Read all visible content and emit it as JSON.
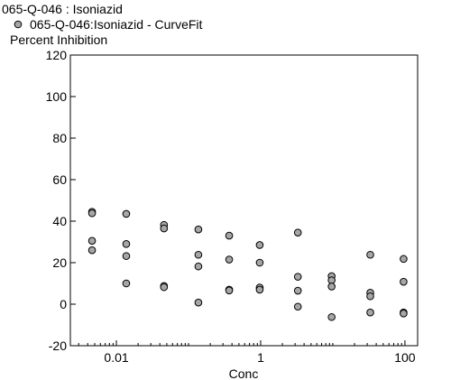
{
  "chart_data": {
    "type": "scatter",
    "title": "065-Q-046  : Isoniazid",
    "legend": {
      "placement": "top-left",
      "entries": [
        {
          "label": "065-Q-046:Isoniazid - CurveFit",
          "marker": "circle",
          "color": "#a6a6a6"
        }
      ]
    },
    "ylabel": "Percent Inhibition",
    "xlabel": "Conc",
    "x_scale": "log",
    "xlim": [
      0.0023,
      150
    ],
    "ylim": [
      -20,
      120
    ],
    "x_ticks": [
      {
        "value": 0.01,
        "label": "0.01"
      },
      {
        "value": 1,
        "label": "1"
      },
      {
        "value": 100,
        "label": "100"
      }
    ],
    "y_ticks": [
      {
        "value": -20,
        "label": "-20"
      },
      {
        "value": 0,
        "label": "0"
      },
      {
        "value": 20,
        "label": "20"
      },
      {
        "value": 40,
        "label": "40"
      },
      {
        "value": 60,
        "label": "60"
      },
      {
        "value": 80,
        "label": "80"
      },
      {
        "value": 100,
        "label": "100"
      },
      {
        "value": 120,
        "label": "120"
      }
    ],
    "grid": false,
    "marker_color": "#a6a6a6",
    "series": [
      {
        "points": [
          {
            "x": 0.0046,
            "y": 44.5
          },
          {
            "x": 0.0046,
            "y": 43.8
          },
          {
            "x": 0.0046,
            "y": 30.5
          },
          {
            "x": 0.0046,
            "y": 26.0
          },
          {
            "x": 0.0137,
            "y": 43.5
          },
          {
            "x": 0.0137,
            "y": 29.0
          },
          {
            "x": 0.0137,
            "y": 23.2
          },
          {
            "x": 0.0137,
            "y": 10.0
          },
          {
            "x": 0.0457,
            "y": 38.2
          },
          {
            "x": 0.0457,
            "y": 36.5
          },
          {
            "x": 0.0457,
            "y": 8.8
          },
          {
            "x": 0.0457,
            "y": 8.2
          },
          {
            "x": 0.137,
            "y": 36.0
          },
          {
            "x": 0.137,
            "y": 23.8
          },
          {
            "x": 0.137,
            "y": 18.2
          },
          {
            "x": 0.137,
            "y": 0.8
          },
          {
            "x": 0.366,
            "y": 33.0
          },
          {
            "x": 0.366,
            "y": 21.5
          },
          {
            "x": 0.366,
            "y": 7.0
          },
          {
            "x": 0.366,
            "y": 6.6
          },
          {
            "x": 0.97,
            "y": 28.5
          },
          {
            "x": 0.97,
            "y": 20.0
          },
          {
            "x": 0.97,
            "y": 8.0
          },
          {
            "x": 0.97,
            "y": 7.0
          },
          {
            "x": 3.28,
            "y": 34.5
          },
          {
            "x": 3.28,
            "y": 13.2
          },
          {
            "x": 3.28,
            "y": 6.5
          },
          {
            "x": 3.28,
            "y": -1.2
          },
          {
            "x": 9.64,
            "y": 13.5
          },
          {
            "x": 9.64,
            "y": 11.5
          },
          {
            "x": 9.64,
            "y": 8.5
          },
          {
            "x": 9.64,
            "y": -6.2
          },
          {
            "x": 33.1,
            "y": 23.8
          },
          {
            "x": 33.1,
            "y": 5.5
          },
          {
            "x": 33.1,
            "y": 3.8
          },
          {
            "x": 33.1,
            "y": -4.0
          },
          {
            "x": 95.8,
            "y": 21.8
          },
          {
            "x": 95.8,
            "y": 10.8
          },
          {
            "x": 95.8,
            "y": -4.0
          },
          {
            "x": 95.8,
            "y": -4.5
          }
        ]
      }
    ]
  }
}
